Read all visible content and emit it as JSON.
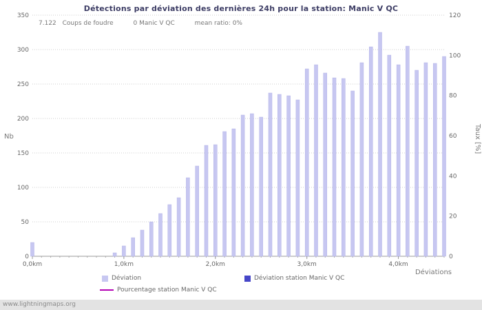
{
  "annotation": {
    "strikes_count": "7.122",
    "strikes_label": "Coups de foudre",
    "station_count": "0 Manic V QC",
    "mean_ratio": "mean ratio: 0%"
  },
  "legend": {
    "deviation": "Déviation",
    "station": "Déviation station Manic V QC",
    "percentage": "Pourcentage station Manic V QC"
  },
  "footer": {
    "watermark": "www.lightningmaps.org"
  },
  "chart_data": {
    "type": "bar",
    "title": "Détections par déviation des dernières 24h pour la station: Manic V QC",
    "x_label": "Déviations",
    "x_tick_labels": [
      "0,0km",
      "1,0km",
      "2,0km",
      "3,0km",
      "4,0km"
    ],
    "x_start_km": 0,
    "x_step_km": 0.1,
    "x_max_km": 4.5,
    "values": [
      20,
      0,
      0,
      0,
      0,
      0,
      0,
      0,
      0,
      5,
      15,
      27,
      38,
      50,
      62,
      75,
      85,
      114,
      131,
      161,
      162,
      181,
      185,
      205,
      207,
      202,
      237,
      235,
      233,
      227,
      272,
      278,
      266,
      259,
      258,
      240,
      281,
      304,
      325,
      292,
      278,
      305,
      270,
      281,
      280,
      290
    ],
    "station_values_all": 0,
    "percentage_values_all": 0,
    "y_left": {
      "label": "Nb",
      "min": 0,
      "max": 350,
      "step": 50
    },
    "y_right": {
      "label": "Taux [%]",
      "min": 0,
      "max": 120,
      "step": 20
    },
    "grid": "dotted-horizontal",
    "legend_position": "bottom",
    "colors": {
      "bar": "#c7c7f1",
      "bar_edge": "#b2b2e8",
      "station_bar": "#4646c8",
      "percentage_line": "#b400b4",
      "title_text": "#3c3c64"
    }
  }
}
